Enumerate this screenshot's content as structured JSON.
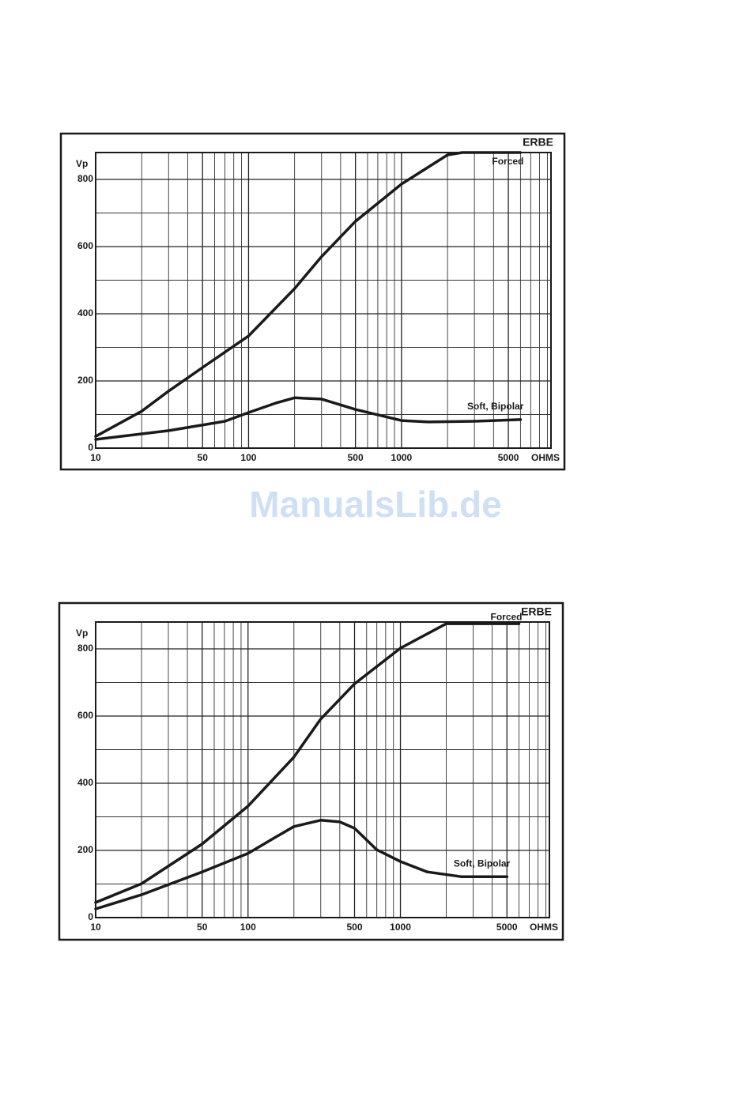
{
  "chart_data": [
    {
      "type": "line",
      "title": "ERBE",
      "y_label": "Vp",
      "x_label": "OHMS",
      "x_scale": "log",
      "xlim": [
        10,
        9500
      ],
      "ylim": [
        0,
        880
      ],
      "xticks": [
        10,
        50,
        100,
        500,
        1000,
        5000
      ],
      "yticks": [
        0,
        200,
        400,
        600,
        800
      ],
      "xgrid": [
        20,
        30,
        40,
        60,
        70,
        80,
        90,
        200,
        300,
        400,
        600,
        700,
        800,
        900,
        2000,
        3000,
        4000,
        6000,
        7000,
        8000,
        9000
      ],
      "ygrid": [
        100,
        300,
        500,
        700
      ],
      "series": [
        {
          "name": "Forced",
          "color": "#1a1a1a",
          "x": [
            10,
            20,
            30,
            50,
            100,
            200,
            300,
            500,
            1000,
            2000,
            2500,
            6000
          ],
          "values": [
            35,
            110,
            170,
            240,
            334,
            475,
            570,
            675,
            786,
            873,
            880,
            880
          ]
        },
        {
          "name": "Soft, Bipolar",
          "color": "#1a1a1a",
          "x": [
            10,
            30,
            70,
            100,
            150,
            200,
            300,
            500,
            1000,
            1500,
            3000,
            6000
          ],
          "values": [
            26,
            52,
            80,
            106,
            134,
            150,
            146,
            115,
            82,
            78,
            80,
            85
          ]
        }
      ]
    },
    {
      "type": "line",
      "title": "ERBE",
      "y_label": "Vp",
      "x_label": "OHMS",
      "x_scale": "log",
      "xlim": [
        10,
        9500
      ],
      "ylim": [
        0,
        880
      ],
      "xticks": [
        10,
        50,
        100,
        500,
        1000,
        5000
      ],
      "yticks": [
        0,
        200,
        400,
        600,
        800
      ],
      "xgrid": [
        20,
        30,
        40,
        60,
        70,
        80,
        90,
        200,
        300,
        400,
        600,
        700,
        800,
        900,
        2000,
        3000,
        4000,
        6000,
        7000,
        8000,
        9000
      ],
      "ygrid": [
        100,
        300,
        500,
        700
      ],
      "series": [
        {
          "name": "Forced",
          "color": "#1a1a1a",
          "x": [
            10,
            20,
            50,
            100,
            200,
            300,
            500,
            1000,
            2000,
            5000,
            6000
          ],
          "values": [
            45,
            101,
            219,
            332,
            478,
            591,
            696,
            802,
            875,
            875,
            875
          ]
        },
        {
          "name": "Soft, Bipolar",
          "color": "#1a1a1a",
          "x": [
            10,
            20,
            50,
            100,
            150,
            200,
            300,
            400,
            500,
            700,
            1000,
            1500,
            2500,
            5000
          ],
          "values": [
            26,
            68,
            136,
            191,
            238,
            271,
            290,
            285,
            266,
            202,
            167,
            136,
            122,
            122
          ]
        }
      ]
    }
  ],
  "watermark": "ManualsLib.de"
}
